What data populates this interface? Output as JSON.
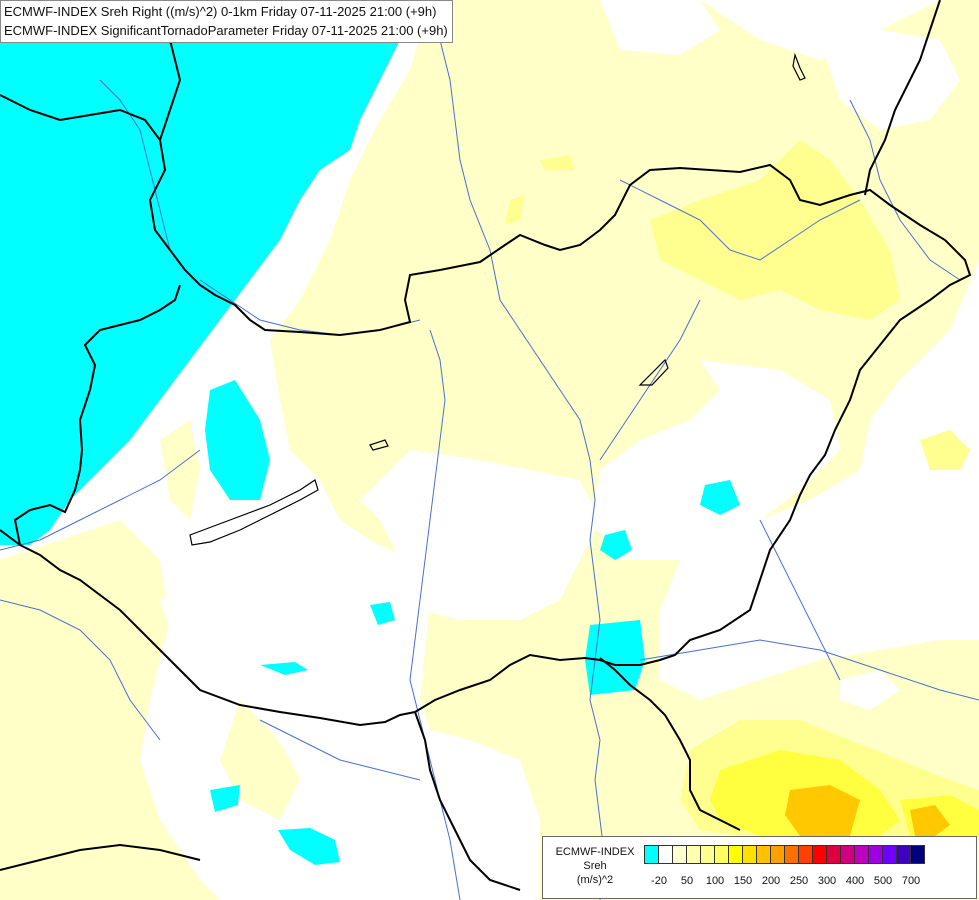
{
  "header": {
    "line1": "ECMWF-INDEX Sreh Right ((m/s)^2) 0-1km Friday 07-11-2025 21:00 (+9h)",
    "line2": "ECMWF-INDEX SignificantTornadoParameter Friday 07-11-2025 21:00 (+9h)"
  },
  "legend": {
    "title": "ECMWF-INDEX",
    "subtitle": "Sreh",
    "unit": "(m/s)^2",
    "colors": [
      "#00ffff",
      "#ffffff",
      "#ffffd0",
      "#ffffb0",
      "#ffff90",
      "#ffff60",
      "#ffff00",
      "#ffe000",
      "#ffc000",
      "#ffa000",
      "#ff7000",
      "#ff4000",
      "#ff0000",
      "#e00040",
      "#d00080",
      "#c000c0",
      "#a000e0",
      "#7000ff",
      "#4000c0",
      "#000080"
    ],
    "ticks": [
      "-20",
      "50",
      "100",
      "150",
      "200",
      "250",
      "300",
      "400",
      "500",
      "700"
    ]
  }
}
